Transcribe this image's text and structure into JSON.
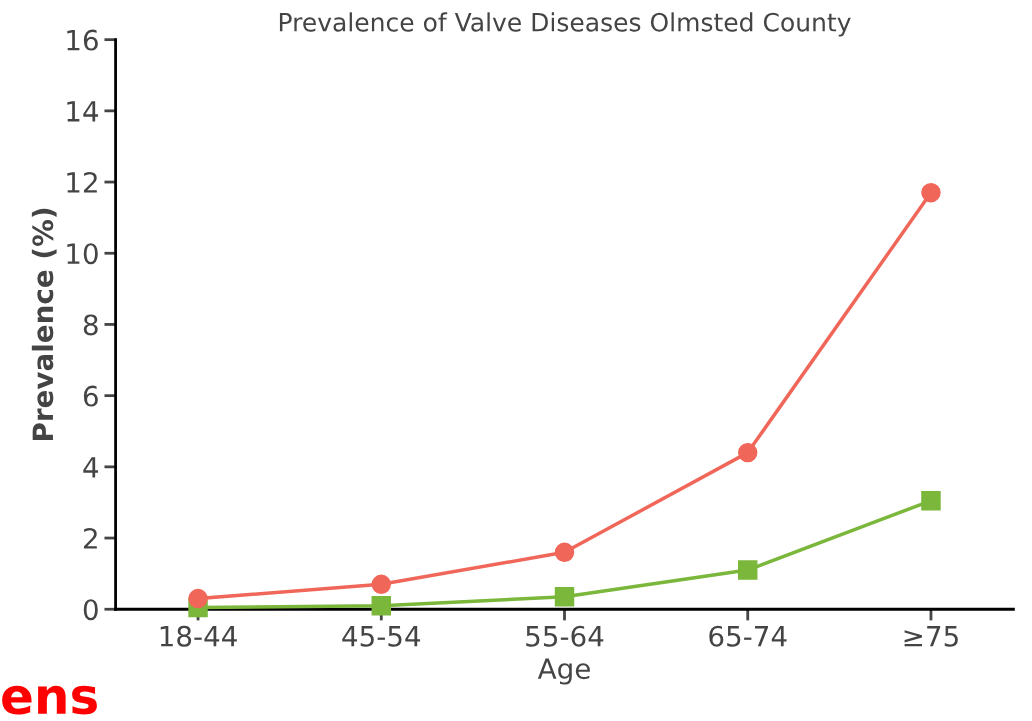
{
  "chart_data": {
    "type": "line",
    "title": "Prevalence of Valve Diseases Olmsted County",
    "xlabel": "Age",
    "ylabel": "Prevalence (%)",
    "categories": [
      "18-44",
      "45-54",
      "55-64",
      "65-74",
      "≥75"
    ],
    "series": [
      {
        "color": "#f0675a",
        "marker": "circle",
        "values": [
          0.3,
          0.7,
          1.6,
          4.4,
          11.7
        ]
      },
      {
        "color": "#7ab73a",
        "marker": "square",
        "values": [
          0.05,
          0.1,
          0.35,
          1.1,
          3.05
        ]
      }
    ],
    "ylim": [
      0,
      16
    ],
    "yticks": [
      0,
      2,
      4,
      6,
      8,
      10,
      12,
      14,
      16
    ],
    "grid": false,
    "legend": false,
    "line_style": "solid",
    "annotations": [
      "ens"
    ]
  }
}
